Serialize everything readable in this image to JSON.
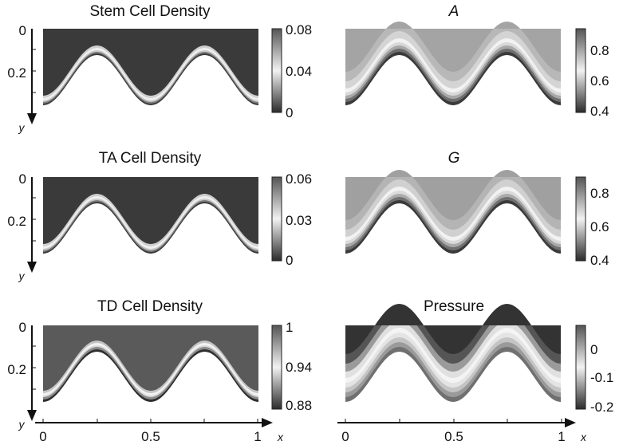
{
  "figure": {
    "panels": [
      {
        "id": "stem",
        "title": "Stem Cell Density",
        "title_italic": false,
        "colorbar_ticks": [
          "0.08",
          "0.04",
          "0"
        ],
        "field": "stem"
      },
      {
        "id": "A",
        "title": "A",
        "title_italic": true,
        "colorbar_ticks": [
          "0.8",
          "0.6",
          "0.4"
        ],
        "field": "A"
      },
      {
        "id": "ta",
        "title": "TA Cell Density",
        "title_italic": false,
        "colorbar_ticks": [
          "0.06",
          "0.03",
          "0"
        ],
        "field": "ta"
      },
      {
        "id": "G",
        "title": "G",
        "title_italic": true,
        "colorbar_ticks": [
          "0.8",
          "0.6",
          "0.4"
        ],
        "field": "G"
      },
      {
        "id": "td",
        "title": "TD Cell Density",
        "title_italic": false,
        "colorbar_ticks": [
          "1",
          "0.94",
          "0.88"
        ],
        "field": "td"
      },
      {
        "id": "pressure",
        "title": "Pressure",
        "title_italic": false,
        "colorbar_ticks": [
          "0",
          "-0.1",
          "-0.2"
        ],
        "field": "pressure"
      }
    ],
    "y_axis": {
      "label": "y",
      "ticks": [
        "0",
        "0.2"
      ]
    },
    "x_axis": {
      "label": "x",
      "ticks": [
        "0",
        "0.5",
        "1"
      ]
    }
  }
}
